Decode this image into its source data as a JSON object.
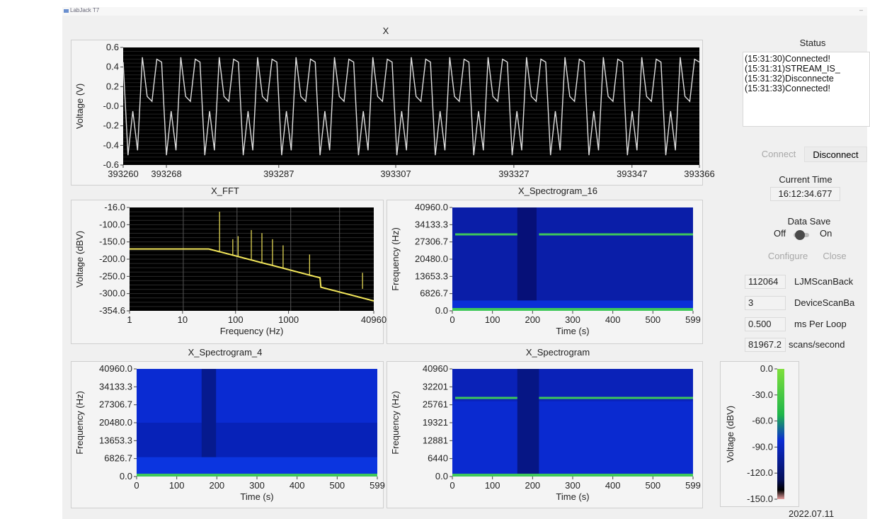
{
  "window": {
    "title": "LabJack T7"
  },
  "plots": {
    "x": {
      "title": "X",
      "ylabel": "Voltage (V)",
      "yticks": [
        "0.6",
        "0.4",
        "0.2",
        "-0.0",
        "-0.2",
        "-0.4",
        "-0.6"
      ],
      "xticks": [
        "393260",
        "393268",
        "393287",
        "393307",
        "393327",
        "393347",
        "393366"
      ]
    },
    "fft": {
      "title": "X_FFT",
      "ylabel": "Voltage (dBV)",
      "xlabel": "Frequency (Hz)",
      "yticks": [
        "-16.0",
        "-100.0",
        "-150.0",
        "-200.0",
        "-250.0",
        "-300.0",
        "-354.6"
      ],
      "xticks": [
        "1",
        "10",
        "100",
        "1000",
        "40960"
      ]
    },
    "spec16": {
      "title": "X_Spectrogram_16",
      "ylabel": "Frequency (Hz)",
      "xlabel": "Time (s)",
      "yticks": [
        "40960.0",
        "34133.3",
        "27306.7",
        "20480.0",
        "13653.3",
        "6826.7",
        "0.0"
      ],
      "xticks": [
        "0",
        "100",
        "200",
        "300",
        "400",
        "500",
        "599"
      ]
    },
    "spec4": {
      "title": "X_Spectrogram_4",
      "ylabel": "Frequency (Hz)",
      "xlabel": "Time (s)",
      "yticks": [
        "40960.0",
        "34133.3",
        "27306.7",
        "20480.0",
        "13653.3",
        "6826.7",
        "0.0"
      ],
      "xticks": [
        "0",
        "100",
        "200",
        "300",
        "400",
        "500",
        "599"
      ]
    },
    "spec": {
      "title": "X_Spectrogram",
      "ylabel": "Frequency (Hz)",
      "xlabel": "Time (s)",
      "yticks": [
        "40960",
        "32201",
        "25761",
        "19321",
        "12881",
        "6440",
        "0.0"
      ],
      "xticks": [
        "0",
        "100",
        "200",
        "300",
        "400",
        "500",
        "599"
      ]
    }
  },
  "colorbar": {
    "ylabel": "Voltage (dBV)",
    "ticks": [
      "0.0",
      "-30.0",
      "-60.0",
      "-90.0",
      "-120.0",
      "-150.0"
    ]
  },
  "status": {
    "label": "Status",
    "lines": [
      "(15:31:30)Connected!",
      "(15:31:31)STREAM_IS_",
      "(15:31:32)Disconnecte",
      "(15:31:33)Connected!"
    ]
  },
  "controls": {
    "connect": "Connect",
    "disconnect": "Disconnect",
    "current_time_label": "Current Time",
    "current_time": "16:12:34.677",
    "data_save_label": "Data Save",
    "off": "Off",
    "on": "On",
    "configure": "Configure",
    "close": "Close"
  },
  "params": [
    {
      "value": "112064",
      "label": "LJMScanBack"
    },
    {
      "value": "3",
      "label": "DeviceScanBa"
    },
    {
      "value": "0.500",
      "label": "ms Per Loop"
    },
    {
      "value": "81967.2",
      "label": "scans/second"
    }
  ],
  "footer": {
    "date": "2022.07.11"
  },
  "colors": {
    "plot_bg": "#000000",
    "trace": "#e0e0e0",
    "fft_trace": "#f2e65a",
    "spec_bg": "#0a2bd2",
    "spec_line": "#3fc85a"
  }
}
